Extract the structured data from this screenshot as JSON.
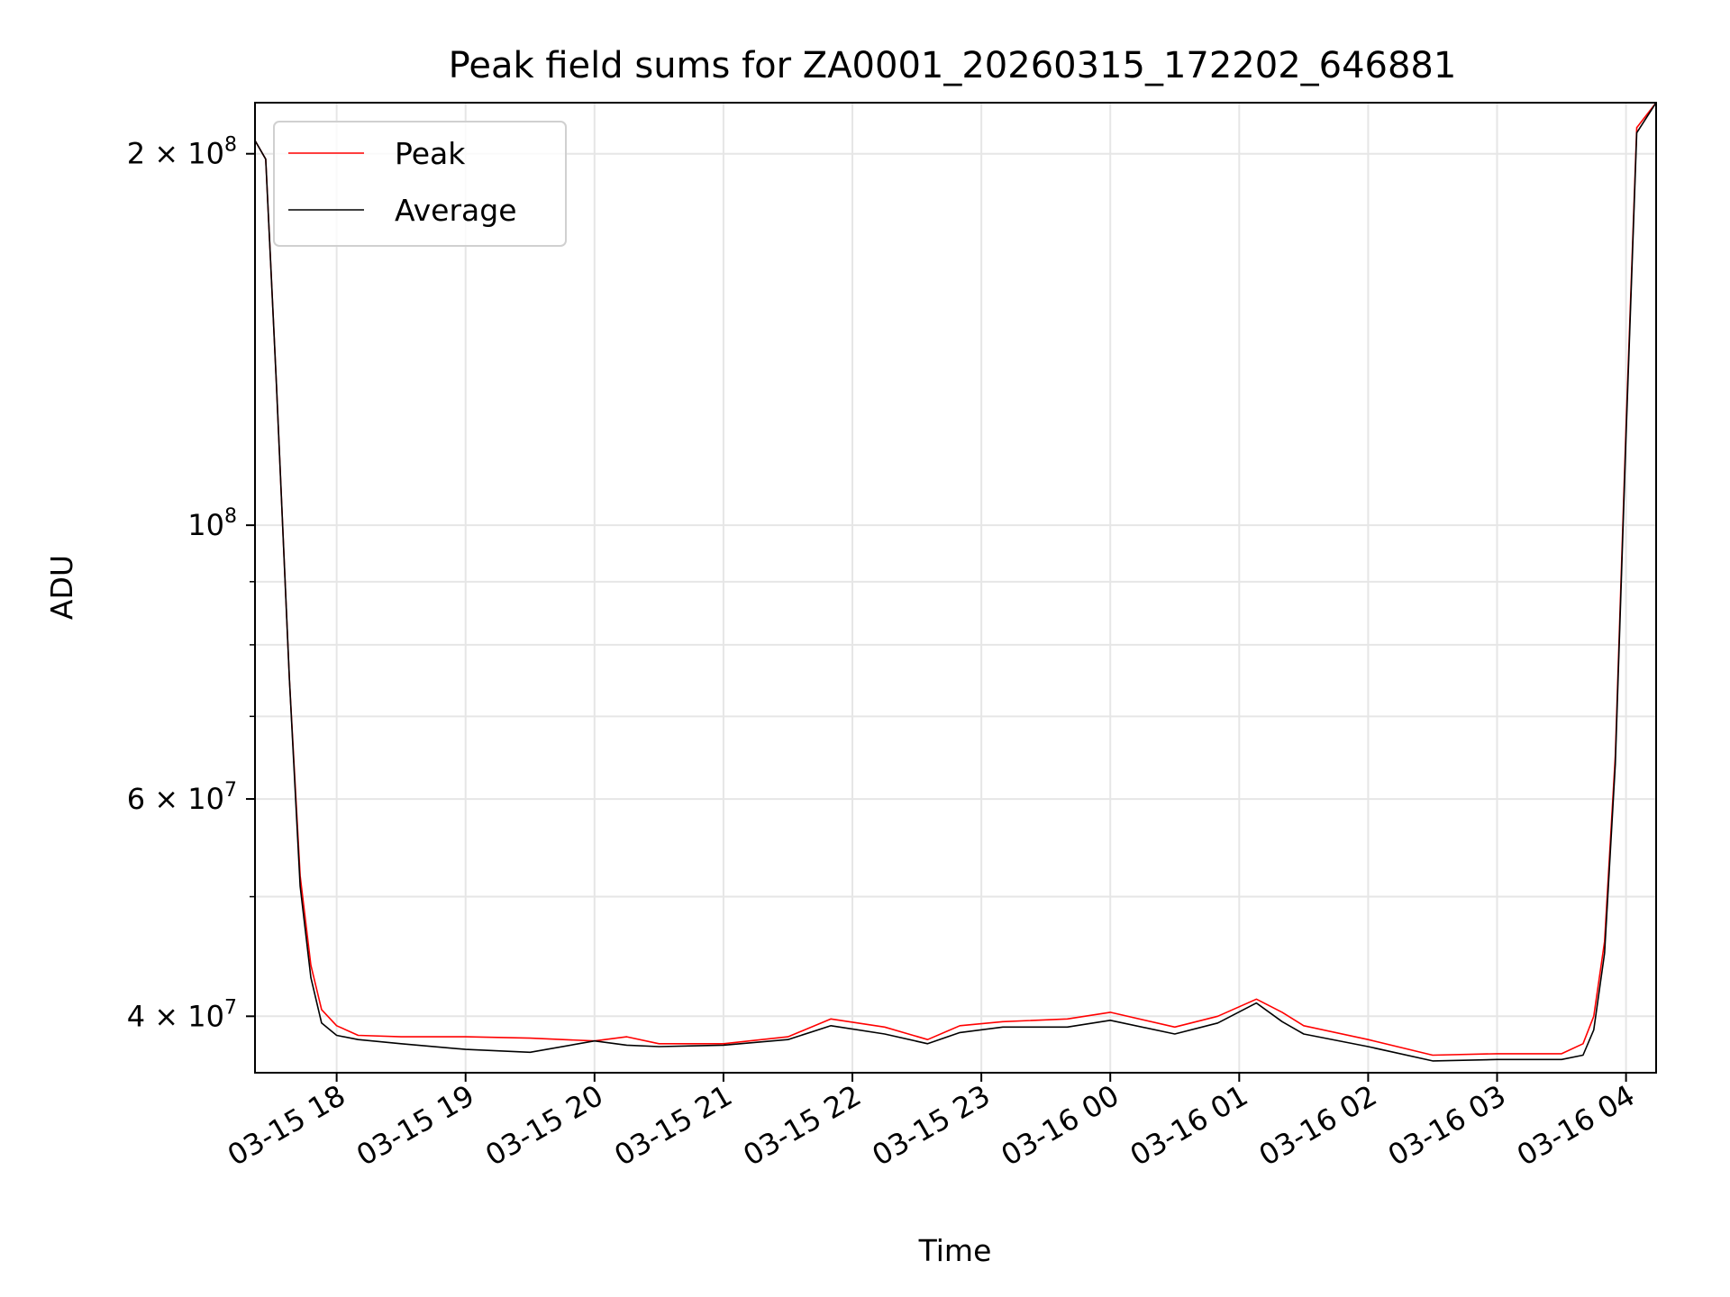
{
  "chart_data": {
    "type": "line",
    "title": "Peak field sums for ZA0001_20260315_172202_646881",
    "xlabel": "Time",
    "ylabel": "ADU",
    "yscale": "log",
    "ylim": [
      36000000,
      220000000
    ],
    "xlim": [
      "03-15 17:22",
      "03-16 04:14"
    ],
    "grid": true,
    "legend_position": "top-left",
    "x_tick_labels": [
      "03-15 18",
      "03-15 19",
      "03-15 20",
      "03-15 21",
      "03-15 22",
      "03-15 23",
      "03-16 00",
      "03-16 01",
      "03-16 02",
      "03-16 03",
      "03-16 04"
    ],
    "y_ticks": [
      {
        "value": 200000000,
        "mantissa": "2",
        "exp": "8"
      },
      {
        "value": 100000000,
        "mantissa": "",
        "exp": "8"
      },
      {
        "value": 60000000,
        "mantissa": "6",
        "exp": "7"
      },
      {
        "value": 40000000,
        "mantissa": "4",
        "exp": "7"
      }
    ],
    "y_minor_ticks": [
      50000000,
      70000000,
      80000000,
      90000000
    ],
    "x": [
      "03-15 17:22",
      "03-15 17:27",
      "03-15 17:32",
      "03-15 17:38",
      "03-15 17:43",
      "03-15 17:48",
      "03-15 17:53",
      "03-15 18:00",
      "03-15 18:10",
      "03-15 18:30",
      "03-15 19:00",
      "03-15 19:30",
      "03-15 20:00",
      "03-15 20:15",
      "03-15 20:30",
      "03-15 21:00",
      "03-15 21:30",
      "03-15 21:50",
      "03-15 22:15",
      "03-15 22:35",
      "03-15 22:50",
      "03-15 23:10",
      "03-15 23:40",
      "03-16 00:00",
      "03-16 00:30",
      "03-16 00:50",
      "03-16 01:08",
      "03-16 01:20",
      "03-16 01:30",
      "03-16 02:00",
      "03-16 02:30",
      "03-16 03:00",
      "03-16 03:30",
      "03-16 03:40",
      "03-16 03:45",
      "03-16 03:50",
      "03-16 03:55",
      "03-16 04:00",
      "03-16 04:05",
      "03-16 04:14"
    ],
    "series": [
      {
        "name": "Peak",
        "color": "#ff0000",
        "values": [
          205000000,
          198000000,
          130000000,
          75000000,
          52000000,
          44000000,
          40500000,
          39300000,
          38600000,
          38500000,
          38500000,
          38400000,
          38200000,
          38500000,
          38000000,
          38000000,
          38500000,
          39800000,
          39200000,
          38300000,
          39300000,
          39600000,
          39800000,
          40300000,
          39200000,
          40000000,
          41300000,
          40300000,
          39300000,
          38300000,
          37200000,
          37300000,
          37300000,
          38000000,
          40000000,
          46000000,
          65000000,
          120000000,
          210000000,
          220000000
        ]
      },
      {
        "name": "Average",
        "color": "#000000",
        "values": [
          205000000,
          198000000,
          130000000,
          75000000,
          51000000,
          43000000,
          39500000,
          38600000,
          38300000,
          38000000,
          37600000,
          37400000,
          38200000,
          37900000,
          37800000,
          37900000,
          38300000,
          39300000,
          38700000,
          38000000,
          38800000,
          39200000,
          39200000,
          39700000,
          38700000,
          39500000,
          41000000,
          39600000,
          38700000,
          37800000,
          36800000,
          36900000,
          36900000,
          37200000,
          39000000,
          45000000,
          64000000,
          118000000,
          208000000,
          220000000
        ]
      }
    ]
  }
}
